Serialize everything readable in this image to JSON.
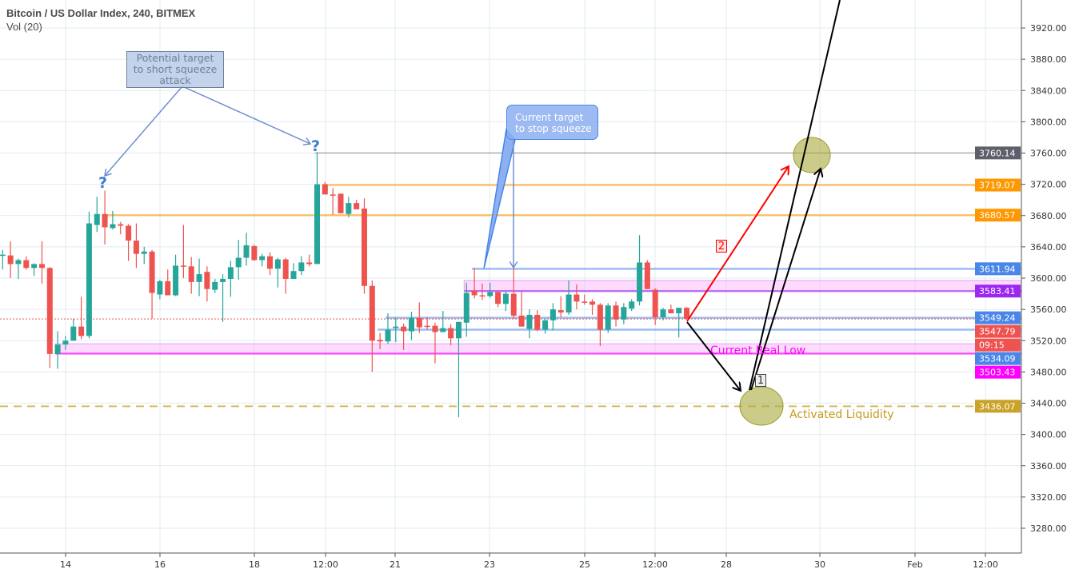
{
  "header": {
    "title": "Bitcoin / US Dollar Index, 240, BITMEX",
    "indicator": "Vol (20)"
  },
  "colors": {
    "up": "#26a69a",
    "down": "#ef5350",
    "grid": "#e1ecf2",
    "background": "#ffffff"
  },
  "chart_data": {
    "type": "candlestick",
    "title": "Bitcoin / US Dollar Index, 240, BITMEX",
    "interval_minutes": 240,
    "ylim": [
      3240,
      3960
    ],
    "grid": true,
    "x_tick_labels": [
      "14",
      "16",
      "18",
      "12:00",
      "21",
      "23",
      "25",
      "12:00",
      "28",
      "30",
      "Feb",
      "12:00"
    ],
    "y_ticks": [
      3920,
      3880,
      3840,
      3800,
      3760,
      3720,
      3680,
      3640,
      3600,
      3560,
      3520,
      3480,
      3440,
      3400,
      3360,
      3320,
      3280
    ],
    "y_tick_labels": [
      "3920.00",
      "3880.00",
      "3840.00",
      "3800.00",
      "3760.00",
      "3720.00",
      "3680.00",
      "3640.00",
      "3600.00",
      "3560.00",
      "3520.00",
      "3480.00",
      "3440.00",
      "3400.00",
      "3360.00",
      "3320.00",
      "3280.00"
    ],
    "candles_ohlc": [
      [
        3629,
        3636,
        3611,
        3630
      ],
      [
        3629,
        3647,
        3600,
        3618
      ],
      [
        3618,
        3625,
        3599,
        3623
      ],
      [
        3623,
        3628,
        3611,
        3613
      ],
      [
        3613,
        3619,
        3603,
        3618
      ],
      [
        3618,
        3647,
        3593,
        3613
      ],
      [
        3613,
        3614,
        3485,
        3503
      ],
      [
        3503,
        3532,
        3484,
        3515
      ],
      [
        3515,
        3526,
        3508,
        3520
      ],
      [
        3520,
        3548,
        3520,
        3538
      ],
      [
        3538,
        3576,
        3522,
        3526
      ],
      [
        3526,
        3685,
        3523,
        3670
      ],
      [
        3668,
        3704,
        3659,
        3682
      ],
      [
        3682,
        3712,
        3643,
        3665
      ],
      [
        3664,
        3686,
        3662,
        3669
      ],
      [
        3669,
        3672,
        3656,
        3667
      ],
      [
        3667,
        3669,
        3622,
        3648
      ],
      [
        3648,
        3670,
        3613,
        3631
      ],
      [
        3631,
        3640,
        3618,
        3634
      ],
      [
        3634,
        3636,
        3548,
        3581
      ],
      [
        3579,
        3598,
        3573,
        3596
      ],
      [
        3596,
        3611,
        3578,
        3578
      ],
      [
        3578,
        3630,
        3577,
        3616
      ],
      [
        3616,
        3668,
        3600,
        3615
      ],
      [
        3615,
        3627,
        3580,
        3595
      ],
      [
        3595,
        3625,
        3577,
        3605
      ],
      [
        3608,
        3615,
        3570,
        3586
      ],
      [
        3585,
        3599,
        3581,
        3595
      ],
      [
        3595,
        3605,
        3544,
        3599
      ],
      [
        3599,
        3622,
        3576,
        3614
      ],
      [
        3614,
        3649,
        3598,
        3626
      ],
      [
        3626,
        3658,
        3616,
        3642
      ],
      [
        3641,
        3643,
        3622,
        3623
      ],
      [
        3623,
        3631,
        3615,
        3628
      ],
      [
        3628,
        3633,
        3604,
        3612
      ],
      [
        3612,
        3626,
        3588,
        3624
      ],
      [
        3624,
        3626,
        3580,
        3599
      ],
      [
        3599,
        3619,
        3599,
        3609
      ],
      [
        3609,
        3628,
        3604,
        3620
      ],
      [
        3620,
        3630,
        3615,
        3618
      ],
      [
        3618,
        3761,
        3618,
        3720
      ],
      [
        3720,
        3723,
        3707,
        3707
      ],
      [
        3707,
        3715,
        3681,
        3706
      ],
      [
        3708,
        3708,
        3683,
        3683
      ],
      [
        3682,
        3704,
        3678,
        3696
      ],
      [
        3696,
        3700,
        3688,
        3688
      ],
      [
        3689,
        3702,
        3580,
        3590
      ],
      [
        3590,
        3597,
        3480,
        3520
      ],
      [
        3521,
        3530,
        3509,
        3519
      ],
      [
        3519,
        3555,
        3516,
        3534
      ],
      [
        3536,
        3549,
        3518,
        3538
      ],
      [
        3538,
        3542,
        3508,
        3532
      ],
      [
        3532,
        3557,
        3521,
        3549
      ],
      [
        3549,
        3569,
        3530,
        3537
      ],
      [
        3539,
        3550,
        3534,
        3538
      ],
      [
        3539,
        3543,
        3491,
        3531
      ],
      [
        3531,
        3558,
        3531,
        3536
      ],
      [
        3536,
        3541,
        3514,
        3523
      ],
      [
        3523,
        3544,
        3422,
        3544
      ],
      [
        3543,
        3594,
        3525,
        3581
      ],
      [
        3584,
        3613,
        3574,
        3578
      ],
      [
        3578,
        3593,
        3572,
        3577
      ],
      [
        3577,
        3594,
        3575,
        3582
      ],
      [
        3582,
        3584,
        3563,
        3567
      ],
      [
        3567,
        3583,
        3558,
        3580
      ],
      [
        3580,
        3615,
        3548,
        3552
      ],
      [
        3552,
        3583,
        3538,
        3538
      ],
      [
        3535,
        3560,
        3523,
        3553
      ],
      [
        3553,
        3559,
        3532,
        3534
      ],
      [
        3534,
        3548,
        3529,
        3546
      ],
      [
        3546,
        3568,
        3533,
        3560
      ],
      [
        3559,
        3577,
        3550,
        3556
      ],
      [
        3556,
        3597,
        3553,
        3579
      ],
      [
        3579,
        3592,
        3560,
        3570
      ],
      [
        3570,
        3579,
        3566,
        3569
      ],
      [
        3570,
        3573,
        3553,
        3566
      ],
      [
        3566,
        3568,
        3513,
        3534
      ],
      [
        3534,
        3568,
        3530,
        3565
      ],
      [
        3565,
        3570,
        3538,
        3547
      ],
      [
        3547,
        3568,
        3541,
        3563
      ],
      [
        3561,
        3573,
        3558,
        3570
      ],
      [
        3570,
        3655,
        3565,
        3620
      ],
      [
        3620,
        3623,
        3586,
        3586
      ],
      [
        3585,
        3587,
        3540,
        3550
      ],
      [
        3550,
        3562,
        3546,
        3560
      ],
      [
        3560,
        3566,
        3555,
        3555
      ],
      [
        3555,
        3562,
        3524,
        3562
      ],
      [
        3562,
        3563,
        3547,
        3548
      ]
    ],
    "last_price": {
      "value": 3547.79,
      "label": "3547.79",
      "countdown": "09:15",
      "color": "#ef5350"
    },
    "levels": [
      {
        "value": 3760.14,
        "label": "3760.14",
        "color": "#5d606b",
        "style": "solid",
        "from_candle": 40
      },
      {
        "value": 3719.07,
        "label": "3719.07",
        "color": "#ff9800",
        "style": "solid",
        "from_candle": 41
      },
      {
        "value": 3680.57,
        "label": "3680.57",
        "color": "#ff9800",
        "style": "solid",
        "from_candle": 13
      },
      {
        "value": 3611.94,
        "label": "3611.94",
        "color": "#4a86e8",
        "style": "solid",
        "from_candle": 60
      },
      {
        "value": 3583.41,
        "label": "3583.41",
        "color": "#9c27f0",
        "style": "solid",
        "from_candle": 59,
        "zone_to": 3597
      },
      {
        "value": 3549.24,
        "label": "3549.24",
        "color": "#4a86e8",
        "style": "solid",
        "from_candle": 49
      },
      {
        "value": 3534.09,
        "label": "3534.09",
        "color": "#4a86e8",
        "style": "solid",
        "from_candle": 48
      },
      {
        "value": 3503.43,
        "label": "3503.43",
        "color": "#ff00ff",
        "style": "solid",
        "from_candle": 7,
        "zone_to": 3516
      },
      {
        "value": 3436.07,
        "label": "3436.07",
        "color": "#c9a227",
        "style": "dashed",
        "from_candle": -1
      }
    ],
    "annotations": {
      "note_short_squeeze": [
        "Potential target",
        "to short squeeze",
        "attack"
      ],
      "note_stop_squeeze": [
        "Current target",
        "to stop squeeze"
      ],
      "question_mark": "?",
      "current_real_low": "Current Real Low",
      "activated_liquidity": "Activated Liquidity",
      "path_1_label": "1",
      "path_2_label": "2"
    }
  }
}
